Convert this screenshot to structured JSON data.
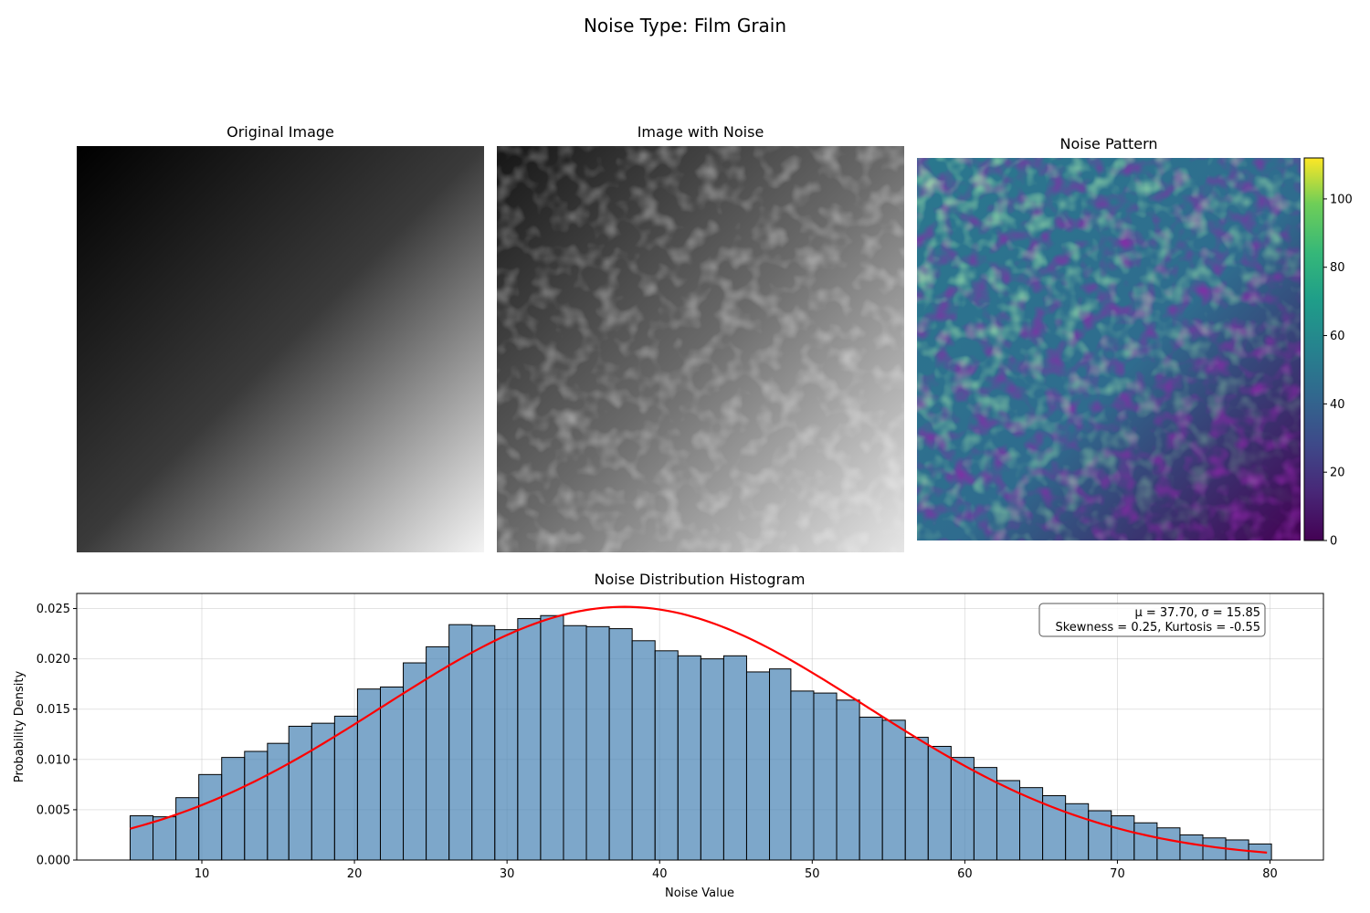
{
  "figure": {
    "suptitle": "Noise Type: Film Grain"
  },
  "panels": {
    "original": {
      "title": "Original Image"
    },
    "noisy": {
      "title": "Image with Noise"
    },
    "noise": {
      "title": "Noise Pattern"
    }
  },
  "colorbar": {
    "colormap": "viridis",
    "range": [
      0,
      112
    ],
    "ticks": [
      0,
      20,
      40,
      60,
      80,
      100
    ]
  },
  "chart_data": {
    "type": "bar",
    "title": "Noise Distribution Histogram",
    "xlabel": "Noise Value",
    "ylabel": "Probability Density",
    "xlim": [
      1.8,
      83.5
    ],
    "ylim": [
      0,
      0.0265
    ],
    "xticks": [
      10,
      20,
      30,
      40,
      50,
      60,
      70,
      80
    ],
    "yticks": [
      0.0,
      0.005,
      0.01,
      0.015,
      0.02,
      0.025
    ],
    "ytick_labels": [
      "0.000",
      "0.005",
      "0.010",
      "0.015",
      "0.020",
      "0.025"
    ],
    "grid": true,
    "bin_edges": [
      5.3,
      6.8,
      8.3,
      9.8,
      11.3,
      12.8,
      14.3,
      15.7,
      17.2,
      18.7,
      20.2,
      21.7,
      23.2,
      24.7,
      26.2,
      27.7,
      29.2,
      30.7,
      32.2,
      33.7,
      35.2,
      36.7,
      38.2,
      39.7,
      41.2,
      42.7,
      44.2,
      45.7,
      47.2,
      48.6,
      50.1,
      51.6,
      53.1,
      54.6,
      56.1,
      57.6,
      59.1,
      60.6,
      62.1,
      63.6,
      65.1,
      66.6,
      68.1,
      69.6,
      71.1,
      72.6,
      74.1,
      75.6,
      77.1,
      78.6
    ],
    "values": [
      0.0044,
      0.0043,
      0.0062,
      0.0085,
      0.0102,
      0.0108,
      0.0116,
      0.0133,
      0.0136,
      0.0143,
      0.017,
      0.0172,
      0.0196,
      0.0212,
      0.0234,
      0.0233,
      0.0229,
      0.024,
      0.0243,
      0.0233,
      0.0232,
      0.023,
      0.0218,
      0.0208,
      0.0203,
      0.02,
      0.0203,
      0.0187,
      0.019,
      0.0168,
      0.0166,
      0.0159,
      0.0142,
      0.0139,
      0.0122,
      0.0113,
      0.0102,
      0.0092,
      0.0079,
      0.0072,
      0.0064,
      0.0056,
      0.0049,
      0.0044,
      0.0037,
      0.0032,
      0.0025,
      0.0022,
      0.002,
      0.0016
    ],
    "bar_color": "#4682b4",
    "fit": {
      "type": "normal",
      "mu": 37.7,
      "sigma": 15.85,
      "x_range": [
        5.3,
        79.8
      ],
      "color": "#ff0000"
    },
    "annotation": {
      "line1": "μ = 37.70, σ = 15.85",
      "line2": "Skewness = 0.25, Kurtosis = -0.55",
      "position": "top-right"
    }
  }
}
